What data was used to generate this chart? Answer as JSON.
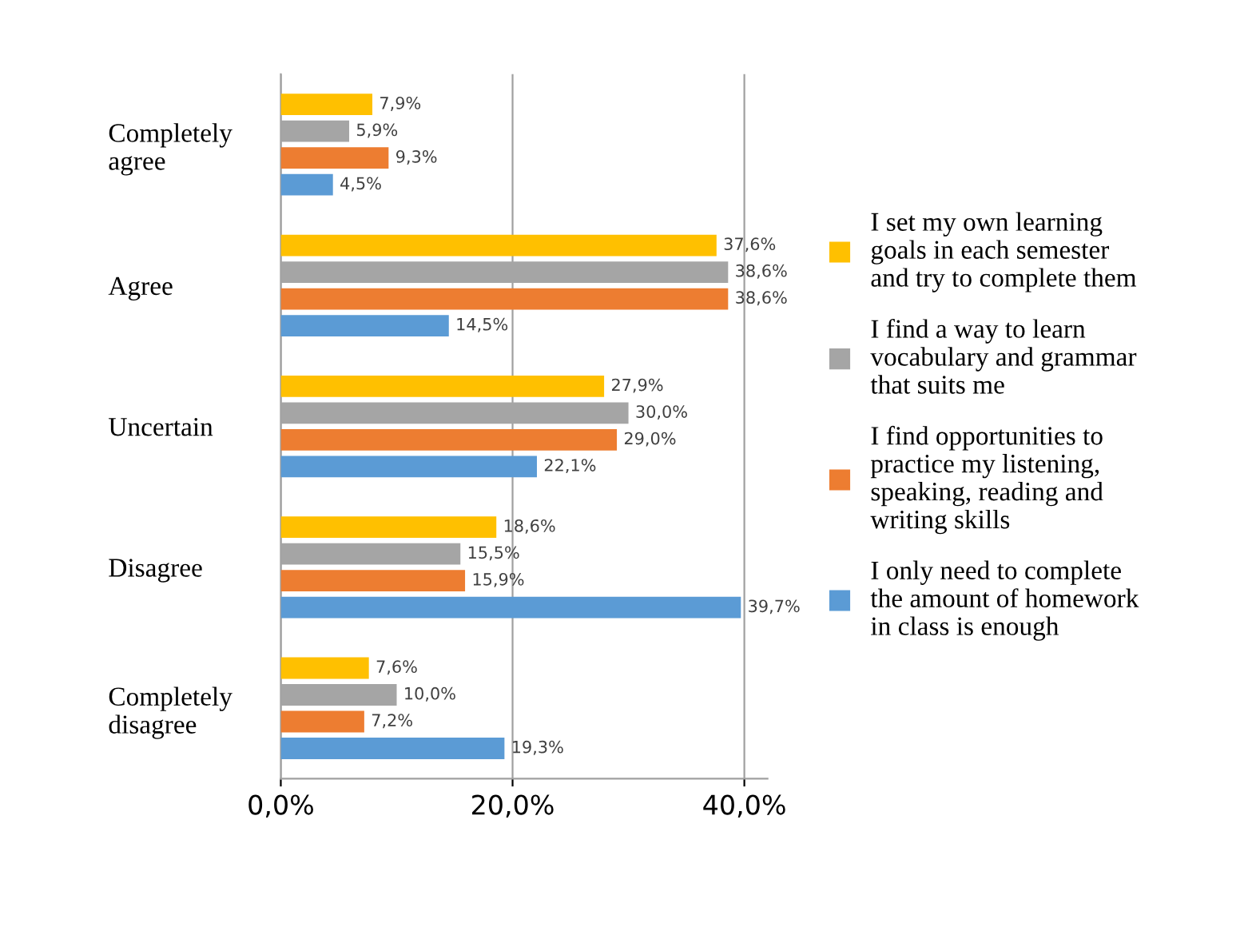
{
  "chart_data": {
    "type": "bar",
    "orientation": "horizontal",
    "categories": [
      "Completely agree",
      "Agree",
      "Uncertain",
      "Disagree",
      "Completely disagree"
    ],
    "series": [
      {
        "name": "I set my own learning goals in each semester and try to complete them",
        "color": "#ffc000",
        "values": [
          7.9,
          37.6,
          27.9,
          18.6,
          7.6
        ],
        "value_labels": [
          "7,9%",
          "37,6%",
          "27,9%",
          "18,6%",
          "7,6%"
        ]
      },
      {
        "name": "I find a way to learn vocabulary and grammar that suits me",
        "color": "#a5a5a5",
        "values": [
          5.9,
          38.6,
          30.0,
          15.5,
          10.0
        ],
        "value_labels": [
          "5,9%",
          "38,6%",
          "30,0%",
          "15,5%",
          "10,0%"
        ]
      },
      {
        "name": "I find opportunities to practice my listening, speaking, reading and writing skills",
        "color": "#ed7d31",
        "values": [
          9.3,
          38.6,
          29.0,
          15.9,
          7.2
        ],
        "value_labels": [
          "9,3%",
          "38,6%",
          "29,0%",
          "15,9%",
          "7,2%"
        ]
      },
      {
        "name": "I only need to complete the amount of homework in class is enough",
        "color": "#5b9bd5",
        "values": [
          4.5,
          14.5,
          22.1,
          39.7,
          19.3
        ],
        "value_labels": [
          "4,5%",
          "14,5%",
          "22,1%",
          "39,7%",
          "19,3%"
        ]
      }
    ],
    "xlim": [
      0,
      42
    ],
    "xticks": [
      {
        "value": 0,
        "label": "0,0%"
      },
      {
        "value": 20,
        "label": "20,0%"
      },
      {
        "value": 40,
        "label": "40,0%"
      }
    ],
    "grid": "x",
    "legend": "right"
  }
}
